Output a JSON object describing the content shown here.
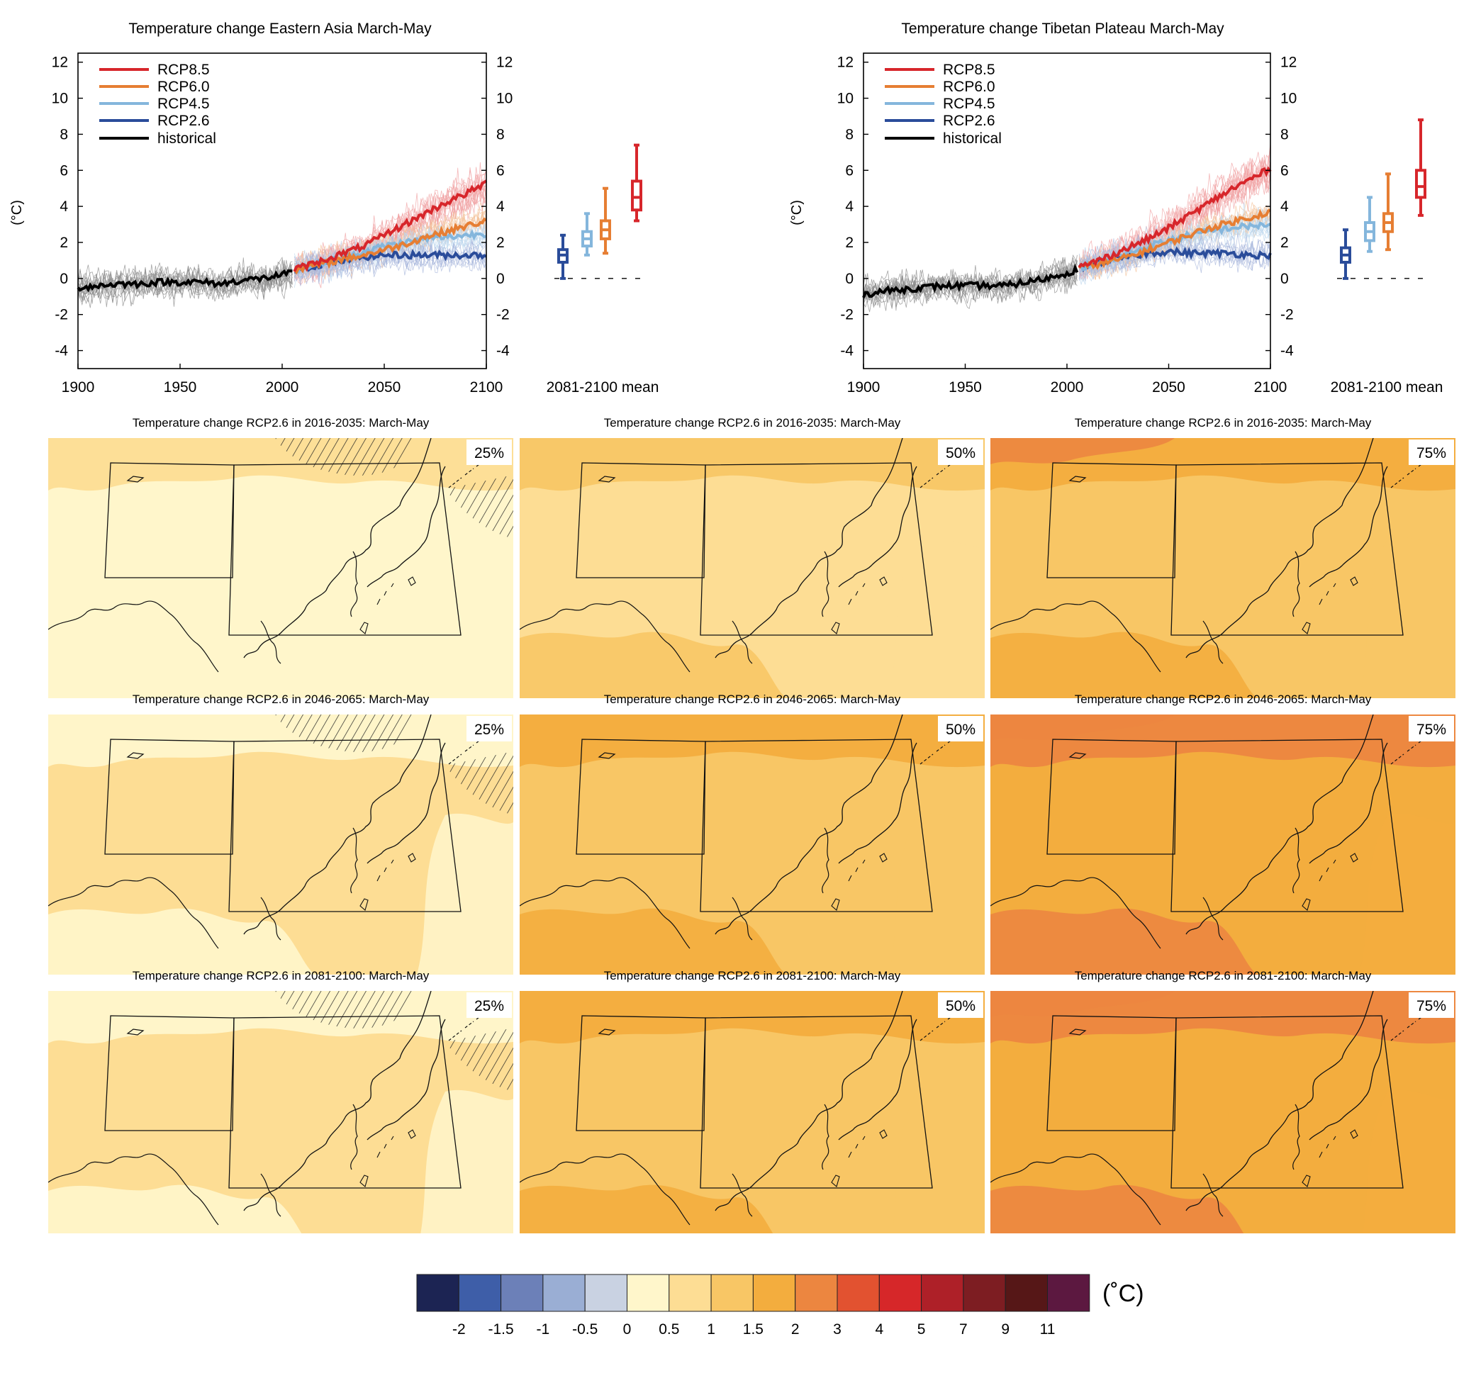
{
  "timeseries": [
    {
      "title": "Temperature change Eastern Asia March-May",
      "ylabel": "(°C)",
      "xticks": [
        "1900",
        "1950",
        "2000",
        "2050",
        "2100"
      ],
      "yticks": [
        "12",
        "10",
        "8",
        "6",
        "4",
        "2",
        "0",
        "-2",
        "-4"
      ],
      "boxlabel": "2081-2100 mean"
    },
    {
      "title": "Temperature change Tibetan Plateau March-May",
      "ylabel": "(°C)",
      "xticks": [
        "1900",
        "1950",
        "2000",
        "2050",
        "2100"
      ],
      "yticks": [
        "12",
        "10",
        "8",
        "6",
        "4",
        "2",
        "0",
        "-2",
        "-4"
      ],
      "boxlabel": "2081-2100 mean"
    }
  ],
  "legend": [
    {
      "label": "RCP8.5",
      "color": "#d7262b"
    },
    {
      "label": "RCP6.0",
      "color": "#e67e33"
    },
    {
      "label": "RCP4.5",
      "color": "#84b6dc"
    },
    {
      "label": "RCP2.6",
      "color": "#2a4c9a"
    },
    {
      "label": "historical",
      "color": "#000000"
    }
  ],
  "maps": {
    "titles": [
      "Temperature change RCP2.6 in 2016-2035: March-May",
      "Temperature change RCP2.6 in 2046-2065: March-May",
      "Temperature change RCP2.6 in 2081-2100: March-May"
    ],
    "percentiles": [
      "25%",
      "50%",
      "75%"
    ]
  },
  "colorbar": {
    "unit": "(˚C)",
    "colors": [
      "#1c2453",
      "#3e5ea8",
      "#6c80b8",
      "#9aaed4",
      "#c9d2e2",
      "#fff6cb",
      "#fddd94",
      "#f8c665",
      "#f3ad3e",
      "#ec8640",
      "#e25230",
      "#d62729",
      "#ae2028",
      "#7d1d22",
      "#561717",
      "#5c1840"
    ],
    "ticks": [
      "-2",
      "-1.5",
      "-1",
      "-0.5",
      "0",
      "0.5",
      "1",
      "1.5",
      "2",
      "3",
      "4",
      "5",
      "7",
      "9",
      "11"
    ]
  },
  "chart_data": [
    {
      "type": "line",
      "title": "Temperature change Eastern Asia March-May",
      "ylabel": "(°C)",
      "xlim": [
        1900,
        2100
      ],
      "ylim": [
        -5,
        12.5
      ],
      "series": [
        {
          "name": "historical",
          "x": [
            1900,
            1910,
            1920,
            1930,
            1940,
            1950,
            1960,
            1970,
            1980,
            1990,
            2000,
            2005
          ],
          "values": [
            -0.5,
            -0.4,
            -0.3,
            -0.3,
            -0.2,
            -0.2,
            -0.2,
            -0.3,
            -0.1,
            0.0,
            0.2,
            0.3
          ]
        },
        {
          "name": "RCP8.5",
          "x": [
            2006,
            2020,
            2030,
            2040,
            2050,
            2060,
            2070,
            2080,
            2090,
            2100
          ],
          "values": [
            0.5,
            1.0,
            1.4,
            1.8,
            2.4,
            3.0,
            3.6,
            4.2,
            4.7,
            5.3
          ]
        },
        {
          "name": "RCP6.0",
          "x": [
            2006,
            2020,
            2030,
            2040,
            2050,
            2060,
            2070,
            2080,
            2090,
            2100
          ],
          "values": [
            0.5,
            0.8,
            1.1,
            1.3,
            1.6,
            1.9,
            2.3,
            2.6,
            2.9,
            3.2
          ]
        },
        {
          "name": "RCP4.5",
          "x": [
            2006,
            2020,
            2030,
            2040,
            2050,
            2060,
            2070,
            2080,
            2090,
            2100
          ],
          "values": [
            0.5,
            0.9,
            1.2,
            1.5,
            1.8,
            2.0,
            2.2,
            2.3,
            2.4,
            2.5
          ]
        },
        {
          "name": "RCP2.6",
          "x": [
            2006,
            2020,
            2030,
            2040,
            2050,
            2060,
            2070,
            2080,
            2090,
            2100
          ],
          "values": [
            0.5,
            0.8,
            1.0,
            1.2,
            1.3,
            1.3,
            1.3,
            1.3,
            1.3,
            1.3
          ]
        }
      ],
      "boxes_2081_2100": [
        {
          "name": "RCP2.6",
          "min": 0.0,
          "q1": 0.9,
          "median": 1.3,
          "q3": 1.6,
          "max": 2.4
        },
        {
          "name": "RCP4.5",
          "min": 1.3,
          "q1": 1.8,
          "median": 2.2,
          "q3": 2.6,
          "max": 3.6
        },
        {
          "name": "RCP6.0",
          "min": 1.4,
          "q1": 2.2,
          "median": 2.7,
          "q3": 3.2,
          "max": 5.0
        },
        {
          "name": "RCP8.5",
          "min": 3.2,
          "q1": 3.8,
          "median": 4.5,
          "q3": 5.4,
          "max": 7.4
        }
      ]
    },
    {
      "type": "line",
      "title": "Temperature change Tibetan Plateau March-May",
      "ylabel": "(°C)",
      "xlim": [
        1900,
        2100
      ],
      "ylim": [
        -5,
        12.5
      ],
      "series": [
        {
          "name": "historical",
          "x": [
            1900,
            1910,
            1920,
            1930,
            1940,
            1950,
            1960,
            1970,
            1980,
            1990,
            2000,
            2005
          ],
          "values": [
            -0.9,
            -0.7,
            -0.6,
            -0.5,
            -0.4,
            -0.4,
            -0.4,
            -0.4,
            -0.2,
            0.0,
            0.3,
            0.5
          ]
        },
        {
          "name": "RCP8.5",
          "x": [
            2006,
            2020,
            2030,
            2040,
            2050,
            2060,
            2070,
            2080,
            2090,
            2100
          ],
          "values": [
            0.6,
            1.2,
            1.7,
            2.2,
            2.8,
            3.5,
            4.2,
            4.9,
            5.5,
            6.1
          ]
        },
        {
          "name": "RCP6.0",
          "x": [
            2006,
            2020,
            2030,
            2040,
            2050,
            2060,
            2070,
            2080,
            2090,
            2100
          ],
          "values": [
            0.6,
            0.9,
            1.2,
            1.6,
            2.0,
            2.4,
            2.8,
            3.1,
            3.4,
            3.7
          ]
        },
        {
          "name": "RCP4.5",
          "x": [
            2006,
            2020,
            2030,
            2040,
            2050,
            2060,
            2070,
            2080,
            2090,
            2100
          ],
          "values": [
            0.6,
            1.0,
            1.4,
            1.8,
            2.1,
            2.4,
            2.6,
            2.8,
            2.9,
            3.0
          ]
        },
        {
          "name": "RCP2.6",
          "x": [
            2006,
            2020,
            2030,
            2040,
            2050,
            2060,
            2070,
            2080,
            2090,
            2100
          ],
          "values": [
            0.6,
            1.0,
            1.2,
            1.4,
            1.5,
            1.4,
            1.4,
            1.4,
            1.3,
            1.3
          ]
        }
      ],
      "boxes_2081_2100": [
        {
          "name": "RCP2.6",
          "min": 0.0,
          "q1": 0.9,
          "median": 1.3,
          "q3": 1.7,
          "max": 2.7
        },
        {
          "name": "RCP4.5",
          "min": 1.5,
          "q1": 2.1,
          "median": 2.6,
          "q3": 3.1,
          "max": 4.5
        },
        {
          "name": "RCP6.0",
          "min": 1.6,
          "q1": 2.6,
          "median": 3.1,
          "q3": 3.6,
          "max": 5.8
        },
        {
          "name": "RCP8.5",
          "min": 3.5,
          "q1": 4.5,
          "median": 5.1,
          "q3": 6.0,
          "max": 8.8
        }
      ]
    }
  ]
}
